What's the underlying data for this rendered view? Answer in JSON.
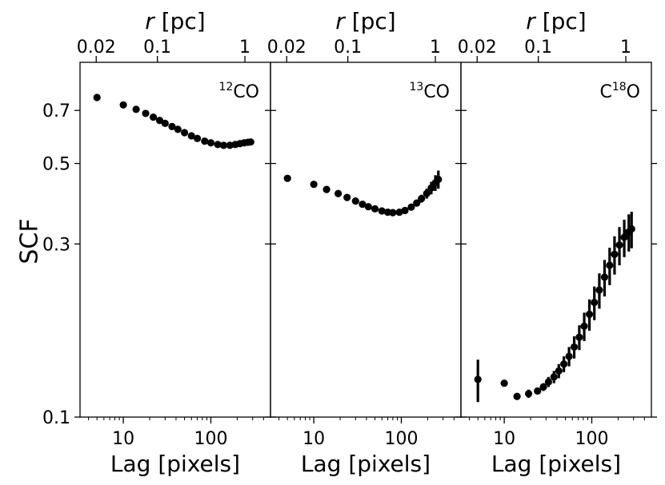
{
  "chart_data": {
    "type": "scatter",
    "shared_ylabel": "SCF",
    "yscale": "log",
    "ylim": [
      0.1,
      0.95
    ],
    "y_ticks": [
      {
        "value": 0.1,
        "label": "0.1"
      },
      {
        "value": 0.3,
        "label": "0.3"
      },
      {
        "value": 0.5,
        "label": "0.5"
      },
      {
        "value": 0.7,
        "label": "0.7"
      }
    ],
    "xscale": "log",
    "xlim": [
      3.2,
      480
    ],
    "x_ticks": [
      {
        "value": 10,
        "label": "10"
      },
      {
        "value": 100,
        "label": "100"
      }
    ],
    "top_axis": {
      "title_italic": "r",
      "title_rest": " [pc]",
      "ticks": [
        {
          "lag": 4.9,
          "label": "0.02"
        },
        {
          "lag": 24.5,
          "label": "0.1"
        },
        {
          "lag": 245,
          "label": "1"
        }
      ]
    },
    "xlabel": "Lag [pixels]",
    "panels": [
      {
        "label_sup": "12",
        "label_main": "CO",
        "series": [
          {
            "x": 5,
            "y": 0.76,
            "err": 0
          },
          {
            "x": 10,
            "y": 0.725,
            "err": 0
          },
          {
            "x": 14,
            "y": 0.705,
            "err": 0
          },
          {
            "x": 18,
            "y": 0.687,
            "err": 0
          },
          {
            "x": 22,
            "y": 0.671,
            "err": 0
          },
          {
            "x": 26,
            "y": 0.657,
            "err": 0
          },
          {
            "x": 30,
            "y": 0.645,
            "err": 0
          },
          {
            "x": 36,
            "y": 0.632,
            "err": 0
          },
          {
            "x": 42,
            "y": 0.621,
            "err": 0
          },
          {
            "x": 50,
            "y": 0.608,
            "err": 0
          },
          {
            "x": 60,
            "y": 0.596,
            "err": 0
          },
          {
            "x": 70,
            "y": 0.586,
            "err": 0
          },
          {
            "x": 85,
            "y": 0.576,
            "err": 0
          },
          {
            "x": 100,
            "y": 0.57,
            "err": 0
          },
          {
            "x": 120,
            "y": 0.564,
            "err": 0
          },
          {
            "x": 140,
            "y": 0.561,
            "err": 0
          },
          {
            "x": 165,
            "y": 0.561,
            "err": 0
          },
          {
            "x": 190,
            "y": 0.564,
            "err": 0.004
          },
          {
            "x": 215,
            "y": 0.567,
            "err": 0.006
          },
          {
            "x": 240,
            "y": 0.57,
            "err": 0.008
          },
          {
            "x": 265,
            "y": 0.572,
            "err": 0.01
          },
          {
            "x": 285,
            "y": 0.573,
            "err": 0.01
          }
        ]
      },
      {
        "label_sup": "13",
        "label_main": "CO",
        "series": [
          {
            "x": 5,
            "y": 0.455,
            "err": 0
          },
          {
            "x": 10,
            "y": 0.438,
            "err": 0
          },
          {
            "x": 14,
            "y": 0.424,
            "err": 0
          },
          {
            "x": 19,
            "y": 0.413,
            "err": 0
          },
          {
            "x": 24,
            "y": 0.403,
            "err": 0
          },
          {
            "x": 30,
            "y": 0.394,
            "err": 0
          },
          {
            "x": 36,
            "y": 0.386,
            "err": 0
          },
          {
            "x": 42,
            "y": 0.38,
            "err": 0
          },
          {
            "x": 50,
            "y": 0.375,
            "err": 0
          },
          {
            "x": 60,
            "y": 0.37,
            "err": 0
          },
          {
            "x": 70,
            "y": 0.367,
            "err": 0
          },
          {
            "x": 80,
            "y": 0.366,
            "err": 0
          },
          {
            "x": 95,
            "y": 0.367,
            "err": 0.002
          },
          {
            "x": 110,
            "y": 0.371,
            "err": 0.003
          },
          {
            "x": 130,
            "y": 0.379,
            "err": 0.005
          },
          {
            "x": 150,
            "y": 0.389,
            "err": 0.007
          },
          {
            "x": 170,
            "y": 0.4,
            "err": 0.01
          },
          {
            "x": 195,
            "y": 0.413,
            "err": 0.013
          },
          {
            "x": 220,
            "y": 0.428,
            "err": 0.017
          },
          {
            "x": 245,
            "y": 0.442,
            "err": 0.022
          },
          {
            "x": 265,
            "y": 0.452,
            "err": 0.026
          }
        ]
      },
      {
        "label_sup": "18",
        "label_pre": "C",
        "label_main": "O",
        "series": [
          {
            "x": 5,
            "y": 0.127,
            "err": 0.017
          },
          {
            "x": 10,
            "y": 0.124,
            "err": 0.002
          },
          {
            "x": 14,
            "y": 0.114,
            "err": 0.002
          },
          {
            "x": 19,
            "y": 0.116,
            "err": 0.003
          },
          {
            "x": 24,
            "y": 0.118,
            "err": 0.002
          },
          {
            "x": 28,
            "y": 0.121,
            "err": 0.003
          },
          {
            "x": 32,
            "y": 0.125,
            "err": 0.004
          },
          {
            "x": 37,
            "y": 0.129,
            "err": 0.005
          },
          {
            "x": 42,
            "y": 0.134,
            "err": 0.006
          },
          {
            "x": 48,
            "y": 0.14,
            "err": 0.007
          },
          {
            "x": 55,
            "y": 0.147,
            "err": 0.009
          },
          {
            "x": 63,
            "y": 0.156,
            "err": 0.011
          },
          {
            "x": 72,
            "y": 0.166,
            "err": 0.013
          },
          {
            "x": 82,
            "y": 0.178,
            "err": 0.016
          },
          {
            "x": 94,
            "y": 0.192,
            "err": 0.019
          },
          {
            "x": 107,
            "y": 0.207,
            "err": 0.022
          },
          {
            "x": 122,
            "y": 0.224,
            "err": 0.025
          },
          {
            "x": 140,
            "y": 0.243,
            "err": 0.028
          },
          {
            "x": 160,
            "y": 0.262,
            "err": 0.031
          },
          {
            "x": 182,
            "y": 0.281,
            "err": 0.034
          },
          {
            "x": 207,
            "y": 0.298,
            "err": 0.036
          },
          {
            "x": 235,
            "y": 0.313,
            "err": 0.037
          },
          {
            "x": 265,
            "y": 0.324,
            "err": 0.038
          },
          {
            "x": 285,
            "y": 0.33,
            "err": 0.038
          }
        ]
      }
    ]
  }
}
